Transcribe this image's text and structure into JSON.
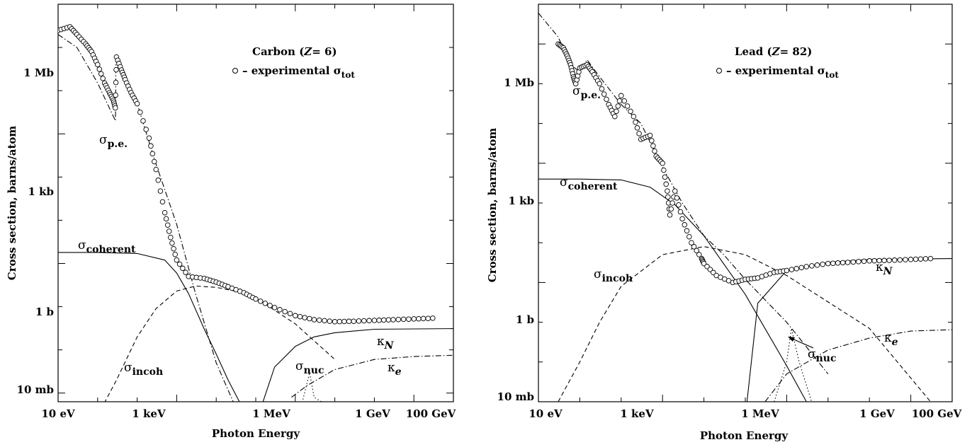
{
  "chart_data": [
    {
      "type": "line",
      "title_name": "Carbon",
      "title_z": "Z",
      "title_eq": "= 6",
      "legend_text": "– experimental σ",
      "legend_sub": "tot",
      "xlabel": "Photon Energy",
      "ylabel": "Cross section, barns/atom",
      "x_scale": "log",
      "y_scale": "log",
      "xlim_eV": [
        10,
        100000000000.0
      ],
      "ylim_barns": [
        0.0063,
        10000000.0
      ],
      "x_ticks": [
        {
          "value": 10,
          "label": "10 eV"
        },
        {
          "value": 1000,
          "label": "1 keV"
        },
        {
          "value": 1000000,
          "label": "1 MeV"
        },
        {
          "value": 1000000000,
          "label": "1 GeV"
        },
        {
          "value": 100000000000,
          "label": "100 GeV"
        }
      ],
      "y_ticks": [
        {
          "value": 0.01,
          "label": "10 mb"
        },
        {
          "value": 1,
          "label": "1 b"
        },
        {
          "value": 1000,
          "label": "1 kb"
        },
        {
          "value": 1000000,
          "label": "1 Mb"
        }
      ],
      "series": [
        {
          "label": "σ",
          "sub": "coherent",
          "style": "solid",
          "x": [
            10,
            100,
            1000,
            5000,
            10000,
            20000,
            50000,
            100000,
            200000,
            500000
          ],
          "y": [
            18,
            18,
            17,
            12,
            6,
            2,
            0.3,
            0.08,
            0.02,
            0.004
          ]
        },
        {
          "label": "σ",
          "sub": "incoh",
          "style": "dashed",
          "x": [
            100,
            300,
            1000,
            3000,
            10000,
            30000,
            100000,
            300000,
            1000000,
            10000000,
            100000000
          ],
          "y": [
            0.003,
            0.02,
            0.2,
            0.9,
            2.3,
            3,
            2.8,
            2.3,
            1.6,
            0.4,
            0.06
          ]
        },
        {
          "label": "σ",
          "sub": "p.e.",
          "style": "dashdot",
          "x": [
            10,
            30,
            100,
            283,
            290,
            1000,
            3000,
            10000,
            30000,
            100000,
            300000
          ],
          "y": [
            2000000,
            1000000,
            150000,
            20000,
            500000,
            50000,
            2000,
            80,
            2,
            0.05,
            0.005
          ]
        },
        {
          "label": "κ",
          "sub": "N",
          "style": "solid",
          "x": [
            1500000,
            3000000,
            10000000,
            30000000,
            100000000,
            1000000000,
            100000000000
          ],
          "y": [
            0.006,
            0.04,
            0.12,
            0.2,
            0.25,
            0.3,
            0.31
          ]
        },
        {
          "label": "κ",
          "sub": "e",
          "style": "dashdot",
          "x": [
            8000000,
            20000000,
            100000000,
            1000000000,
            10000000000,
            100000000000
          ],
          "y": [
            0.008,
            0.015,
            0.035,
            0.06,
            0.07,
            0.075
          ]
        },
        {
          "label": "σ",
          "sub": "nuc",
          "style": "dotted",
          "x": [
            15000000,
            23000000,
            30000000,
            50000000
          ],
          "y": [
            0.006,
            0.03,
            0.008,
            0.006
          ]
        }
      ],
      "experimental_points": {
        "x": [
          10,
          20,
          30,
          50,
          70,
          100,
          150,
          200,
          250,
          280,
          300,
          400,
          500,
          700,
          1000,
          2000,
          3000,
          5000,
          7000,
          10000,
          20000,
          50000,
          100000,
          200000,
          500000,
          1000000,
          3000000,
          10000000,
          30000000,
          100000000,
          300000000,
          1000000000,
          3000000000,
          10000000000,
          30000000000
        ],
        "y": [
          2500000,
          3000000,
          2000000,
          1200000,
          800000,
          400000,
          150000,
          90000,
          60000,
          40000,
          600000,
          300000,
          180000,
          90000,
          50000,
          8000,
          1500,
          150,
          40,
          12,
          5,
          4.5,
          3.7,
          2.9,
          2.1,
          1.5,
          0.95,
          0.62,
          0.5,
          0.45,
          0.46,
          0.48,
          0.5,
          0.52,
          0.54
        ]
      }
    },
    {
      "type": "line",
      "title_name": "Lead",
      "title_z": "Z",
      "title_eq": "= 82",
      "legend_text": "– experimental σ",
      "legend_sub": "tot",
      "xlabel": "Photon Energy",
      "ylabel": "Cross section, barns/atom",
      "x_scale": "log",
      "y_scale": "log",
      "xlim_eV": [
        10,
        100000000000.0
      ],
      "ylim_barns": [
        0.01,
        100000000.0
      ],
      "x_ticks": [
        {
          "value": 10,
          "label": "10 eV"
        },
        {
          "value": 1000,
          "label": "1 keV"
        },
        {
          "value": 1000000,
          "label": "1 MeV"
        },
        {
          "value": 1000000000,
          "label": "1 GeV"
        },
        {
          "value": 100000000000,
          "label": "100 GeV"
        }
      ],
      "y_ticks": [
        {
          "value": 0.01,
          "label": "10 mb"
        },
        {
          "value": 1,
          "label": "1 b"
        },
        {
          "value": 1000,
          "label": "1 kb"
        },
        {
          "value": 1000000,
          "label": "1 Mb"
        }
      ],
      "series": [
        {
          "label": "σ",
          "sub": "coherent",
          "style": "solid",
          "x": [
            10,
            100,
            1000,
            5000,
            20000,
            100000,
            1000000,
            10000000,
            30000000
          ],
          "y": [
            4000,
            4000,
            3800,
            2500,
            900,
            150,
            5,
            0.08,
            0.01
          ]
        },
        {
          "label": "σ",
          "sub": "incoh",
          "style": "dashed",
          "x": [
            30,
            100,
            300,
            1000,
            10000,
            100000,
            1000000,
            10000000,
            1000000000,
            30000000000
          ],
          "y": [
            0.01,
            0.1,
            1,
            8,
            50,
            80,
            50,
            15,
            0.7,
            0.01
          ]
        },
        {
          "label": "σ",
          "sub": "p.e.",
          "style": "dashdot",
          "x": [
            10,
            30,
            60,
            100,
            150,
            300,
            1000,
            3000,
            10000,
            30000,
            100000,
            300000,
            1000000,
            10000000,
            100000000
          ],
          "y": [
            60000000,
            15000000,
            3000000,
            2000000,
            4000000,
            1500000,
            300000,
            100000,
            8000,
            1000,
            150,
            50,
            12,
            1,
            0.05
          ]
        },
        {
          "label": "κ",
          "sub": "N",
          "style": "solid",
          "x": [
            1100000,
            2000000,
            10000000,
            100000000,
            1000000000,
            100000000000
          ],
          "y": [
            0.01,
            3,
            20,
            32,
            38,
            40
          ]
        },
        {
          "label": "κ",
          "sub": "e",
          "style": "dashdot",
          "x": [
            3000000,
            10000000,
            100000000,
            1000000000,
            10000000000,
            100000000000
          ],
          "y": [
            0.01,
            0.05,
            0.2,
            0.4,
            0.6,
            0.65
          ]
        },
        {
          "label": "σ",
          "sub": "nuc",
          "style": "dotted",
          "x": [
            5000000,
            10000000,
            13000000,
            20000000,
            40000000
          ],
          "y": [
            0.01,
            0.1,
            0.7,
            0.1,
            0.01
          ]
        }
      ],
      "experimental_points": {
        "x": [
          30,
          40,
          50,
          60,
          70,
          80,
          100,
          150,
          200,
          300,
          500,
          700,
          1000,
          2000,
          3000,
          5000,
          7000,
          10000,
          13000,
          15000,
          20000,
          30000,
          50000,
          88000,
          100000,
          200000,
          500000,
          1000000,
          2000000,
          5000000,
          10000000,
          30000000,
          100000000,
          300000000,
          1000000000,
          3000000000,
          10000000000,
          30000000000
        ],
        "y": [
          10000000,
          8000000,
          5000000,
          3000000,
          1500000,
          1000000,
          2500000,
          3000000,
          2000000,
          1000000,
          300000,
          150000,
          500000,
          150000,
          40000,
          50000,
          15000,
          10000,
          2000,
          500,
          2000,
          400,
          100,
          40,
          30,
          15,
          10,
          12,
          13,
          18,
          20,
          25,
          30,
          32,
          35,
          36,
          38,
          40
        ]
      }
    }
  ],
  "annotations": {
    "sigma": "σ",
    "kappa": "κ",
    "pe": "p.e.",
    "coherent": "coherent",
    "incoh": "incoh",
    "nuc": "nuc",
    "kN": "N",
    "ke": "e"
  },
  "colors": {
    "ink": "#000000",
    "background": "#ffffff"
  }
}
